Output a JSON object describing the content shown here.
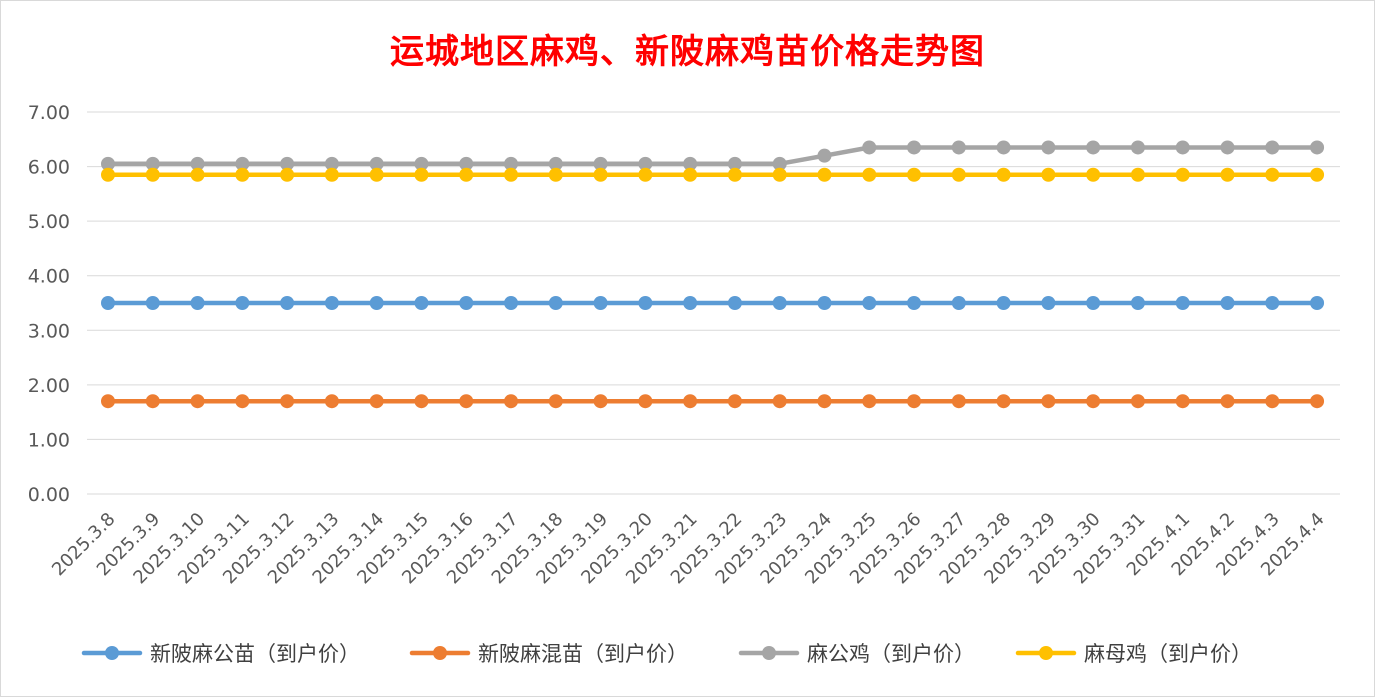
{
  "chart_data": {
    "type": "line",
    "title": "运城地区麻鸡、新陂麻鸡苗价格走势图",
    "categories": [
      "2025.3.8",
      "2025.3.9",
      "2025.3.10",
      "2025.3.11",
      "2025.3.12",
      "2025.3.13",
      "2025.3.14",
      "2025.3.15",
      "2025.3.16",
      "2025.3.17",
      "2025.3.18",
      "2025.3.19",
      "2025.3.20",
      "2025.3.21",
      "2025.3.22",
      "2025.3.23",
      "2025.3.24",
      "2025.3.25",
      "2025.3.26",
      "2025.3.27",
      "2025.3.28",
      "2025.3.29",
      "2025.3.30",
      "2025.3.31",
      "2025.4.1",
      "2025.4.2",
      "2025.4.3",
      "2025.4.4"
    ],
    "ylim": [
      0,
      7
    ],
    "yticks": [
      "0.00",
      "1.00",
      "2.00",
      "3.00",
      "4.00",
      "5.00",
      "6.00",
      "7.00"
    ],
    "grid": true,
    "legend_position": "bottom",
    "series": [
      {
        "name": "新陂麻公苗（到户价）",
        "color": "#5b9bd5",
        "values": [
          3.5,
          3.5,
          3.5,
          3.5,
          3.5,
          3.5,
          3.5,
          3.5,
          3.5,
          3.5,
          3.5,
          3.5,
          3.5,
          3.5,
          3.5,
          3.5,
          3.5,
          3.5,
          3.5,
          3.5,
          3.5,
          3.5,
          3.5,
          3.5,
          3.5,
          3.5,
          3.5,
          3.5
        ]
      },
      {
        "name": "新陂麻混苗（到户价）",
        "color": "#ed7d31",
        "values": [
          1.7,
          1.7,
          1.7,
          1.7,
          1.7,
          1.7,
          1.7,
          1.7,
          1.7,
          1.7,
          1.7,
          1.7,
          1.7,
          1.7,
          1.7,
          1.7,
          1.7,
          1.7,
          1.7,
          1.7,
          1.7,
          1.7,
          1.7,
          1.7,
          1.7,
          1.7,
          1.7,
          1.7
        ]
      },
      {
        "name": "麻公鸡（到户价）",
        "color": "#a5a5a5",
        "values": [
          6.05,
          6.05,
          6.05,
          6.05,
          6.05,
          6.05,
          6.05,
          6.05,
          6.05,
          6.05,
          6.05,
          6.05,
          6.05,
          6.05,
          6.05,
          6.05,
          6.2,
          6.35,
          6.35,
          6.35,
          6.35,
          6.35,
          6.35,
          6.35,
          6.35,
          6.35,
          6.35,
          6.35
        ]
      },
      {
        "name": "麻母鸡（到户价）",
        "color": "#ffc000",
        "values": [
          5.85,
          5.85,
          5.85,
          5.85,
          5.85,
          5.85,
          5.85,
          5.85,
          5.85,
          5.85,
          5.85,
          5.85,
          5.85,
          5.85,
          5.85,
          5.85,
          5.85,
          5.85,
          5.85,
          5.85,
          5.85,
          5.85,
          5.85,
          5.85,
          5.85,
          5.85,
          5.85,
          5.85
        ]
      }
    ]
  }
}
